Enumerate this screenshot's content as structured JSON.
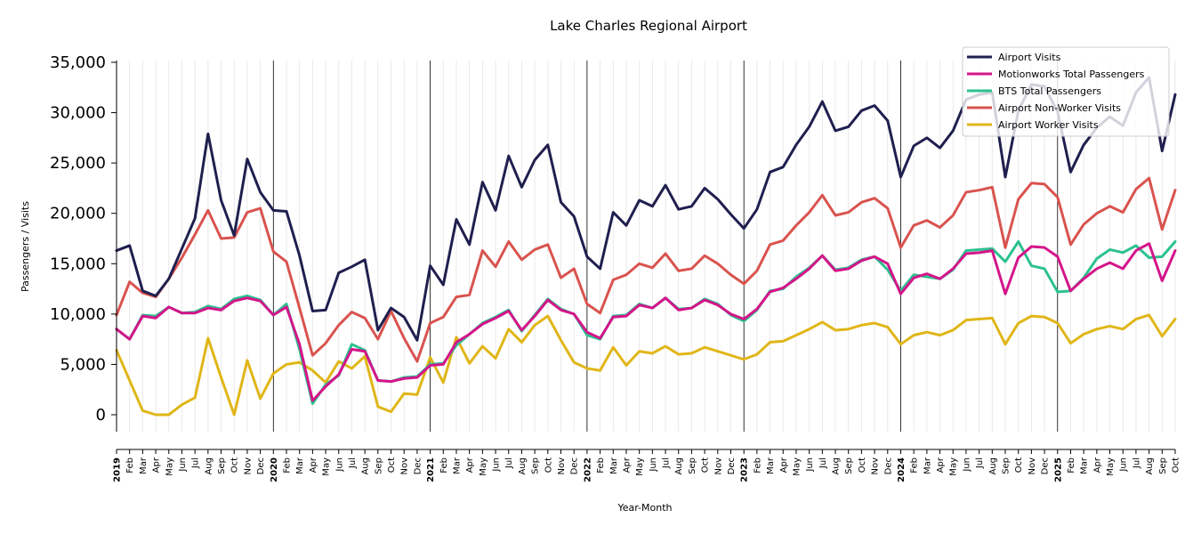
{
  "chart_data": {
    "type": "line",
    "title": "Lake Charles Regional Airport",
    "xlabel": "Year-Month",
    "ylabel": "Passengers / Visits",
    "ylim": [
      -1700,
      35000
    ],
    "yticks": [
      0,
      5000,
      10000,
      15000,
      20000,
      25000,
      30000,
      35000
    ],
    "ytick_labels": [
      "0",
      "5,000",
      "10,000",
      "15,000",
      "20,000",
      "25,000",
      "30,000",
      "35,000"
    ],
    "grid": "vertical monthly gridlines, year separators",
    "legend_position": "top-right",
    "month_labels": [
      "Jan",
      "Feb",
      "Mar",
      "Apr",
      "May",
      "Jun",
      "Jul",
      "Aug",
      "Sep",
      "Oct",
      "Nov",
      "Dec"
    ],
    "years": [
      "2019",
      "2020",
      "2021",
      "2022",
      "2023",
      "2024",
      "2025"
    ],
    "start": "2019-01",
    "end": "2025-10",
    "series": [
      {
        "name": "Airport Visits",
        "color": "#1f1f4f",
        "values": [
          16300,
          16800,
          12300,
          11800,
          13500,
          16500,
          19500,
          27900,
          21300,
          17800,
          25400,
          22100,
          20300,
          20200,
          15800,
          10300,
          10400,
          14100,
          14700,
          15400,
          8400,
          10600,
          9700,
          7400,
          14800,
          12900,
          19400,
          16900,
          23100,
          20300,
          25700,
          22600,
          25300,
          26800,
          21100,
          19700,
          15700,
          14500,
          20100,
          18800,
          21300,
          20700,
          22800,
          20400,
          20700,
          22500,
          21400,
          19900,
          18500,
          20400,
          24100,
          24600,
          26800,
          28600,
          31100,
          28200,
          28600,
          30200,
          30700,
          29200,
          23600,
          26700,
          27500,
          26500,
          28200,
          31300,
          31800,
          32000,
          23600,
          30200,
          32800,
          32600,
          30100,
          24100,
          26800,
          28500,
          29600,
          28700,
          32000,
          33500,
          26200,
          31800
        ]
      },
      {
        "name": "Motionworks Total Passengers",
        "color": "#d4158a",
        "values": [
          8500,
          7500,
          9800,
          9600,
          10700,
          10100,
          10100,
          10600,
          10400,
          11300,
          11600,
          11300,
          9900,
          10700,
          7000,
          1400,
          2800,
          4000,
          6500,
          6300,
          3400,
          3300,
          3600,
          3700,
          4900,
          5000,
          7200,
          8000,
          9000,
          9600,
          10300,
          8400,
          9800,
          11400,
          10400,
          10000,
          8200,
          7600,
          9700,
          9800,
          10900,
          10600,
          11600,
          10400,
          10600,
          11400,
          10900,
          10000,
          9500,
          10500,
          12200,
          12600,
          13500,
          14500,
          15800,
          14300,
          14500,
          15300,
          15700,
          15000,
          12000,
          13600,
          14000,
          13500,
          14500,
          16000,
          16100,
          16300,
          12000,
          15600,
          16700,
          16600,
          15700,
          12300,
          13500,
          14500,
          15100,
          14500,
          16300,
          17000,
          13300,
          16300
        ]
      },
      {
        "name": "BTS Total Passengers",
        "color": "#2cc190",
        "values": [
          8500,
          7500,
          9900,
          9800,
          10700,
          10100,
          10200,
          10800,
          10500,
          11500,
          11800,
          11400,
          9900,
          11000,
          6500,
          1100,
          3000,
          3900,
          7000,
          6400,
          3400,
          3300,
          3700,
          3800,
          5000,
          5100,
          6900,
          8000,
          9100,
          9700,
          10400,
          8300,
          9900,
          11500,
          10500,
          10000,
          7900,
          7500,
          9800,
          9900,
          11000,
          10600,
          11600,
          10500,
          10600,
          11500,
          11000,
          9900,
          9300,
          10400,
          12300,
          12500,
          13700,
          14600,
          15800,
          14400,
          14600,
          15400,
          15700,
          14400,
          12300,
          13900,
          13700,
          13500,
          14400,
          16300,
          16400,
          16500,
          15200,
          17200,
          14800,
          14500,
          12200,
          12300,
          13600,
          15500,
          16400,
          16100,
          16800,
          15600,
          15700,
          17200
        ]
      },
      {
        "name": "Airport Non-Worker Visits",
        "color": "#d9534f",
        "values": [
          9900,
          13200,
          12100,
          11700,
          13500,
          15600,
          17900,
          20300,
          17500,
          17600,
          20100,
          20500,
          16200,
          15200,
          10600,
          5900,
          7100,
          8900,
          10200,
          9600,
          7500,
          10300,
          7600,
          5300,
          9100,
          9700,
          11700,
          11900,
          16300,
          14700,
          17200,
          15400,
          16400,
          16900,
          13600,
          14500,
          11000,
          10100,
          13400,
          13900,
          15000,
          14600,
          16000,
          14300,
          14500,
          15800,
          15000,
          13900,
          13000,
          14300,
          16900,
          17300,
          18800,
          20100,
          21800,
          19800,
          20100,
          21100,
          21500,
          20500,
          16600,
          18800,
          19300,
          18600,
          19800,
          22100,
          22300,
          22600,
          16600,
          21400,
          23000,
          22900,
          21600,
          16900,
          18900,
          20000,
          20700,
          20100,
          22400,
          23500,
          18400,
          22300
        ]
      },
      {
        "name": "Airport Worker Visits",
        "color": "#e0b618",
        "values": [
          6400,
          3400,
          400,
          0,
          0,
          1000,
          1700,
          7600,
          3700,
          0,
          5400,
          1600,
          4100,
          5000,
          5200,
          4400,
          3200,
          5300,
          4600,
          5800,
          800,
          300,
          2100,
          2000,
          5700,
          3200,
          7700,
          5100,
          6800,
          5600,
          8500,
          7200,
          8900,
          9800,
          7400,
          5200,
          4600,
          4400,
          6700,
          4900,
          6300,
          6100,
          6800,
          6000,
          6100,
          6700,
          6300,
          5900,
          5500,
          6000,
          7200,
          7300,
          7900,
          8500,
          9200,
          8400,
          8500,
          8900,
          9100,
          8700,
          7000,
          7900,
          8200,
          7900,
          8400,
          9400,
          9500,
          9600,
          7000,
          9100,
          9800,
          9700,
          9100,
          7100,
          8000,
          8500,
          8800,
          8500,
          9500,
          9900,
          7800,
          9500
        ]
      }
    ]
  }
}
